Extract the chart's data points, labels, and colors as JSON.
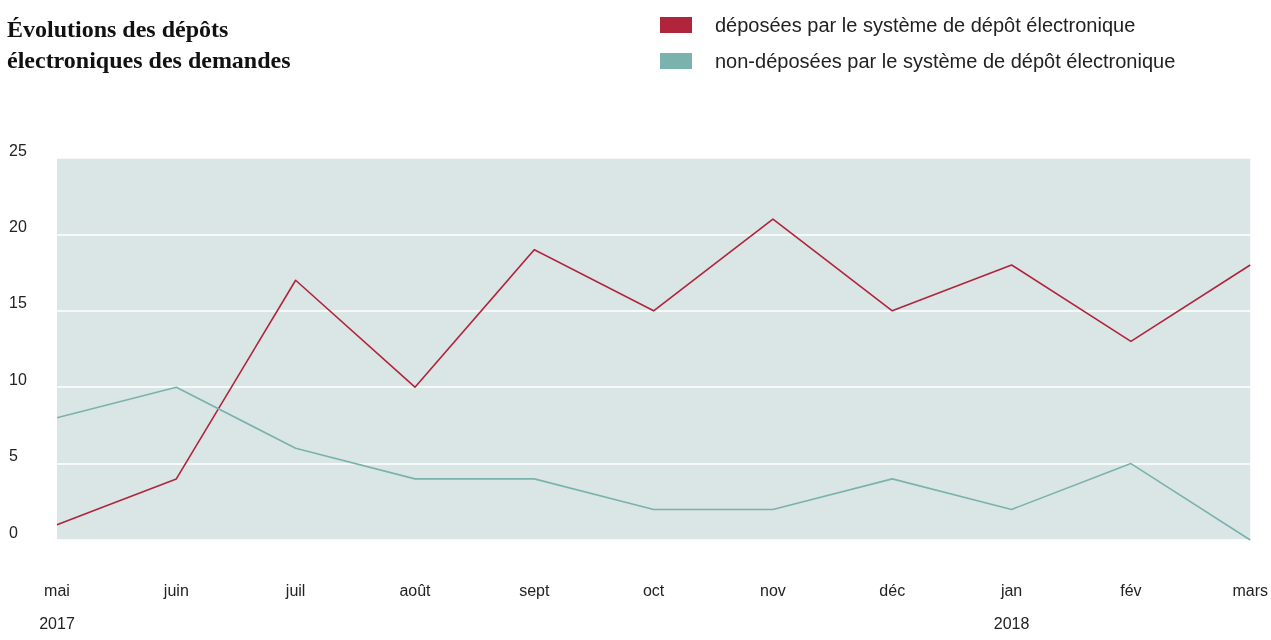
{
  "chart_data": {
    "type": "line",
    "title": "Évolutions des dépôts électroniques des demandes",
    "categories": [
      "mai\n2017",
      "juin",
      "juil",
      "août",
      "sept",
      "oct",
      "nov",
      "déc",
      "jan\n2018",
      "fév",
      "mars"
    ],
    "series": [
      {
        "name": "déposées par le système de dépôt électronique",
        "color": "#b0243c",
        "values": [
          1,
          4,
          17,
          10,
          19,
          15,
          21,
          15,
          18,
          13,
          18
        ]
      },
      {
        "name": "non-déposées par le système de dépôt électronique",
        "color": "#7ab2ad",
        "values": [
          8,
          10,
          6,
          4,
          4,
          2,
          2,
          4,
          2,
          5,
          0
        ]
      }
    ],
    "ylim": [
      0,
      25
    ],
    "yticks": [
      0,
      5,
      10,
      15,
      20,
      25
    ],
    "grid": "y",
    "legend": "top right"
  }
}
